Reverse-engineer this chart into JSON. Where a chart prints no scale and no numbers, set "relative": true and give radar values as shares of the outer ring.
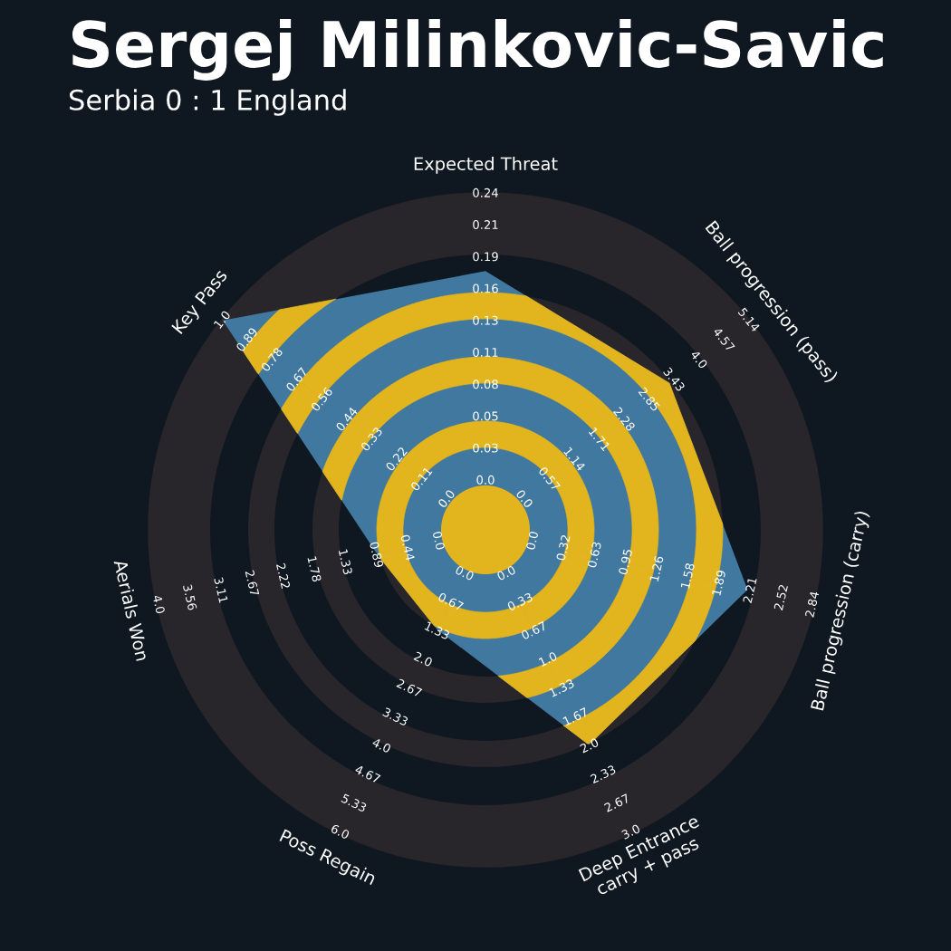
{
  "chart_data": {
    "type": "radar",
    "title": "Sergej Milinkovic-Savic",
    "subtitle": "Serbia 0 : 1 England",
    "categories": [
      "Expected Threat",
      "Ball progression (pass)",
      "Ball progression (carry)",
      "Deep Entrance\ncarry + pass",
      "Poss Regain",
      "Aerials Won",
      "Key Pass"
    ],
    "relative": true,
    "grid": true,
    "series": [
      {
        "color": "#41789f",
        "values": [
          0.77,
          0.7,
          0.8,
          0.71,
          0.33,
          0.33,
          1.0
        ]
      }
    ],
    "annotations": [
      "0.0",
      "0.03",
      "0.05",
      "0.08",
      "0.11",
      "0.13",
      "0.16",
      "0.19",
      "0.21",
      "0.24",
      "0.0",
      "0.57",
      "1.14",
      "1.71",
      "2.28",
      "2.85",
      "3.43",
      "4.0",
      "4.57",
      "5.14",
      "0.0",
      "0.32",
      "0.63",
      "0.95",
      "1.26",
      "1.58",
      "1.89",
      "2.21",
      "2.52",
      "2.84",
      "0.0",
      "0.33",
      "0.67",
      "1.0",
      "1.33",
      "1.67",
      "2.0",
      "2.33",
      "2.67",
      "3.0",
      "0.0",
      "0.67",
      "1.33",
      "2.0",
      "2.67",
      "3.33",
      "4.0",
      "4.67",
      "5.33",
      "6.0",
      "0.0",
      "0.44",
      "0.89",
      "1.33",
      "1.78",
      "2.22",
      "2.67",
      "3.11",
      "3.56",
      "4.0",
      "0.0",
      "0.11",
      "0.22",
      "0.33",
      "0.44",
      "0.56",
      "0.67",
      "0.78",
      "0.89",
      "1.0"
    ]
  }
}
